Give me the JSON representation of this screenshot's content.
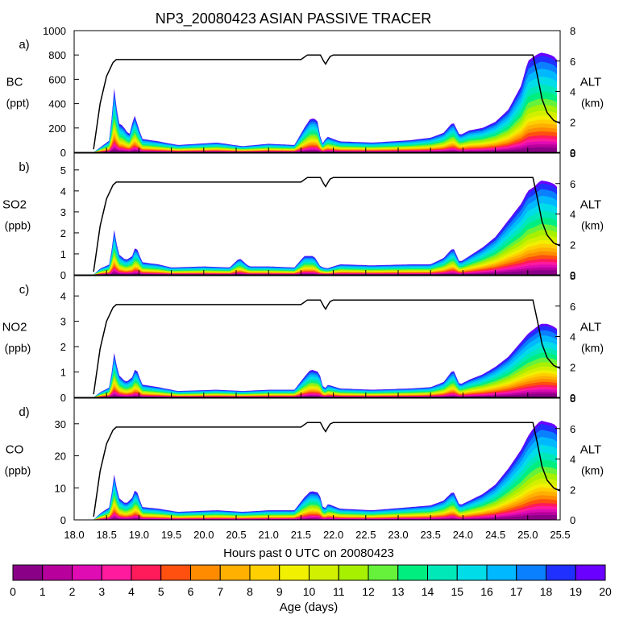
{
  "title": "NP3_20080423 ASIAN PASSIVE TRACER",
  "xaxis": {
    "label": "Hours past 0 UTC on 20080423",
    "range": [
      18.0,
      25.5
    ],
    "ticks": [
      "18.0",
      "18.5",
      "19.0",
      "19.5",
      "20.0",
      "20.5",
      "21.0",
      "21.5",
      "22.0",
      "22.5",
      "23.0",
      "23.5",
      "24.0",
      "24.5",
      "25.0",
      "25.5"
    ]
  },
  "right_axis": {
    "label": "ALT",
    "unit": "(km)",
    "range": [
      0,
      8
    ],
    "ticks": [
      "0",
      "2",
      "4",
      "6",
      "8"
    ]
  },
  "colorbar": {
    "label": "Age (days)",
    "ticks": [
      "0",
      "1",
      "2",
      "3",
      "4",
      "5",
      "6",
      "7",
      "8",
      "9",
      "10",
      "11",
      "12",
      "13",
      "14",
      "15",
      "16",
      "17",
      "18",
      "19",
      "20"
    ],
    "colors": [
      "#8a0087",
      "#b8009d",
      "#df0bb3",
      "#ff1a9e",
      "#ff1a5a",
      "#ff5010",
      "#ff8c00",
      "#ffb000",
      "#ffd000",
      "#f0f000",
      "#d0f000",
      "#a6f000",
      "#66f23a",
      "#00ee80",
      "#00e8b8",
      "#00dde8",
      "#00b8ff",
      "#0a80ff",
      "#2030ff",
      "#6a00ff"
    ]
  },
  "panels": [
    {
      "letter": "a)",
      "species": "BC",
      "unit": "(ppt)",
      "ylim": [
        0,
        1000
      ],
      "ticks": [
        "0",
        "200",
        "400",
        "600",
        "800",
        "1000"
      ]
    },
    {
      "letter": "b)",
      "species": "SO2",
      "unit": "(ppb)",
      "ylim": [
        0,
        5.8
      ],
      "ticks": [
        "0",
        "1",
        "2",
        "3",
        "4",
        "5"
      ]
    },
    {
      "letter": "c)",
      "species": "NO2",
      "unit": "(ppb)",
      "ylim": [
        0,
        4.8
      ],
      "ticks": [
        "0",
        "1",
        "2",
        "3",
        "4"
      ]
    },
    {
      "letter": "d)",
      "species": "CO",
      "unit": "(ppb)",
      "ylim": [
        0,
        38
      ],
      "ticks": [
        "0",
        "10",
        "20",
        "30"
      ]
    }
  ],
  "chart_data": {
    "type": "area",
    "title": "NP3_20080423 ASIAN PASSIVE TRACER",
    "xlabel": "Hours past 0 UTC on 20080423",
    "xlim": [
      18.0,
      25.5
    ],
    "altitude_km": {
      "x": [
        18.3,
        18.4,
        18.5,
        18.6,
        18.65,
        18.8,
        19.0,
        20.0,
        21.0,
        21.5,
        21.6,
        21.8,
        21.85,
        21.88,
        21.92,
        21.95,
        22.0,
        23.0,
        24.0,
        25.0,
        25.08,
        25.15,
        25.22,
        25.3,
        25.4,
        25.5
      ],
      "y": [
        0.2,
        3.2,
        5.0,
        5.9,
        6.1,
        6.1,
        6.1,
        6.1,
        6.1,
        6.1,
        6.4,
        6.4,
        6.0,
        5.8,
        6.1,
        6.3,
        6.4,
        6.4,
        6.4,
        6.4,
        6.4,
        5.0,
        3.5,
        2.6,
        2.1,
        1.9
      ]
    },
    "tracer_total": [
      {
        "species": "BC",
        "unit": "ppt",
        "x": [
          18.3,
          18.4,
          18.55,
          18.62,
          18.68,
          18.75,
          18.85,
          18.93,
          19.05,
          19.3,
          19.6,
          20.2,
          20.6,
          21.0,
          21.4,
          21.55,
          21.65,
          21.75,
          21.82,
          21.9,
          22.1,
          22.6,
          23.2,
          23.5,
          23.7,
          23.85,
          23.95,
          24.1,
          24.3,
          24.5,
          24.7,
          24.9,
          25.0,
          25.1,
          25.2,
          25.3,
          25.4,
          25.45
        ],
        "y": [
          0,
          40,
          100,
          540,
          240,
          220,
          140,
          310,
          110,
          90,
          60,
          80,
          50,
          70,
          60,
          200,
          280,
          270,
          60,
          130,
          90,
          80,
          100,
          120,
          160,
          250,
          140,
          180,
          200,
          250,
          350,
          550,
          750,
          790,
          820,
          810,
          790,
          760
        ]
      },
      {
        "species": "SO2",
        "unit": "ppb",
        "x": [
          18.3,
          18.4,
          18.55,
          18.62,
          18.68,
          18.8,
          18.9,
          18.95,
          19.05,
          19.3,
          19.5,
          20.0,
          20.4,
          20.55,
          20.7,
          21.0,
          21.4,
          21.55,
          21.7,
          21.8,
          21.9,
          22.1,
          22.6,
          23.2,
          23.5,
          23.7,
          23.85,
          23.95,
          24.1,
          24.3,
          24.5,
          24.7,
          24.9,
          25.0,
          25.1,
          25.2,
          25.3,
          25.4,
          25.45
        ],
        "y": [
          0,
          0.3,
          0.5,
          2.2,
          1.0,
          0.7,
          0.9,
          1.4,
          0.6,
          0.5,
          0.35,
          0.4,
          0.35,
          0.8,
          0.4,
          0.4,
          0.35,
          0.9,
          0.9,
          0.4,
          0.3,
          0.5,
          0.45,
          0.5,
          0.5,
          0.8,
          1.3,
          0.6,
          0.9,
          1.3,
          1.8,
          2.6,
          3.4,
          4.0,
          4.2,
          4.5,
          4.45,
          4.35,
          4.2
        ]
      },
      {
        "species": "NO2",
        "unit": "ppb",
        "x": [
          18.3,
          18.4,
          18.55,
          18.62,
          18.68,
          18.8,
          18.9,
          18.95,
          19.05,
          19.3,
          19.6,
          20.2,
          20.6,
          21.0,
          21.4,
          21.55,
          21.65,
          21.78,
          21.85,
          21.92,
          22.1,
          22.6,
          23.2,
          23.5,
          23.7,
          23.85,
          23.95,
          24.1,
          24.3,
          24.5,
          24.7,
          24.9,
          25.0,
          25.1,
          25.2,
          25.3,
          25.4,
          25.45
        ],
        "y": [
          0,
          0.2,
          0.4,
          1.8,
          0.9,
          0.6,
          0.8,
          1.2,
          0.5,
          0.4,
          0.25,
          0.3,
          0.25,
          0.3,
          0.3,
          0.8,
          1.1,
          1.0,
          0.3,
          0.5,
          0.35,
          0.3,
          0.35,
          0.4,
          0.6,
          1.1,
          0.5,
          0.7,
          0.9,
          1.2,
          1.6,
          2.2,
          2.5,
          2.7,
          2.9,
          2.9,
          2.8,
          2.7
        ]
      },
      {
        "species": "CO",
        "unit": "ppb",
        "x": [
          18.3,
          18.4,
          18.55,
          18.62,
          18.68,
          18.8,
          18.9,
          18.95,
          19.05,
          19.3,
          19.6,
          20.2,
          20.6,
          21.0,
          21.4,
          21.55,
          21.65,
          21.78,
          21.85,
          21.92,
          22.1,
          22.6,
          23.2,
          23.5,
          23.7,
          23.85,
          23.95,
          24.1,
          24.3,
          24.5,
          24.7,
          24.9,
          25.0,
          25.1,
          25.2,
          25.3,
          25.4,
          25.45
        ],
        "y": [
          0,
          2,
          4,
          14.5,
          7,
          5,
          7,
          10,
          4,
          3.5,
          2.5,
          3,
          2.5,
          3,
          3,
          7,
          9,
          8.5,
          3,
          5,
          3.5,
          3,
          4,
          4.5,
          6,
          9,
          4.5,
          6,
          8,
          11,
          16,
          22,
          26,
          29,
          31,
          30.5,
          30,
          29
        ]
      }
    ]
  }
}
